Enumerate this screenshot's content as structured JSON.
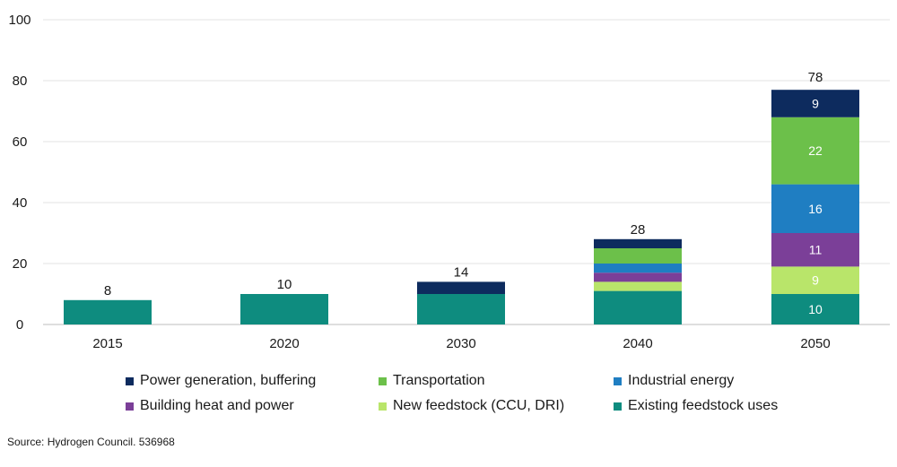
{
  "chart_data": {
    "type": "bar",
    "stacked": true,
    "categories": [
      "2015",
      "2020",
      "2030",
      "2040",
      "2050"
    ],
    "ylim": [
      0,
      100
    ],
    "yticks": [
      0,
      20,
      40,
      60,
      80,
      100
    ],
    "grid": true,
    "legend_position": "bottom",
    "totals": [
      8,
      10,
      14,
      28,
      78
    ],
    "series": [
      {
        "name": "Existing feedstock uses",
        "color": "#0e8c7f",
        "values": [
          8,
          10,
          10,
          11,
          10
        ],
        "labels": [
          "",
          "",
          "",
          "",
          "10"
        ]
      },
      {
        "name": "New feedstock (CCU, DRI)",
        "color": "#b9e56a",
        "values": [
          0,
          0,
          0,
          3,
          9
        ],
        "labels": [
          "",
          "",
          "",
          "",
          "9"
        ]
      },
      {
        "name": "Building heat and power",
        "color": "#7b3f98",
        "values": [
          0,
          0,
          0,
          3,
          11
        ],
        "labels": [
          "",
          "",
          "",
          "",
          "11"
        ]
      },
      {
        "name": "Industrial energy",
        "color": "#1f7ec2",
        "values": [
          0,
          0,
          0,
          3,
          16
        ],
        "labels": [
          "",
          "",
          "",
          "",
          "16"
        ]
      },
      {
        "name": "Transportation",
        "color": "#6cc04a",
        "values": [
          0,
          0,
          0,
          5,
          22
        ],
        "labels": [
          "",
          "",
          "",
          "",
          "22"
        ]
      },
      {
        "name": "Power generation, buffering",
        "color": "#0d2b5e",
        "values": [
          0,
          0,
          4,
          3,
          9
        ],
        "labels": [
          "",
          "",
          "",
          "",
          "9"
        ]
      }
    ]
  },
  "legend": {
    "items": [
      {
        "label": "Power generation, buffering",
        "color": "#0d2b5e"
      },
      {
        "label": "Transportation",
        "color": "#6cc04a"
      },
      {
        "label": "Industrial energy",
        "color": "#1f7ec2"
      },
      {
        "label": "Building heat and power",
        "color": "#7b3f98"
      },
      {
        "label": "New feedstock (CCU, DRI)",
        "color": "#b9e56a"
      },
      {
        "label": "Existing feedstock uses",
        "color": "#0e8c7f"
      }
    ]
  },
  "source": "Source: Hydrogen Council. 536968"
}
